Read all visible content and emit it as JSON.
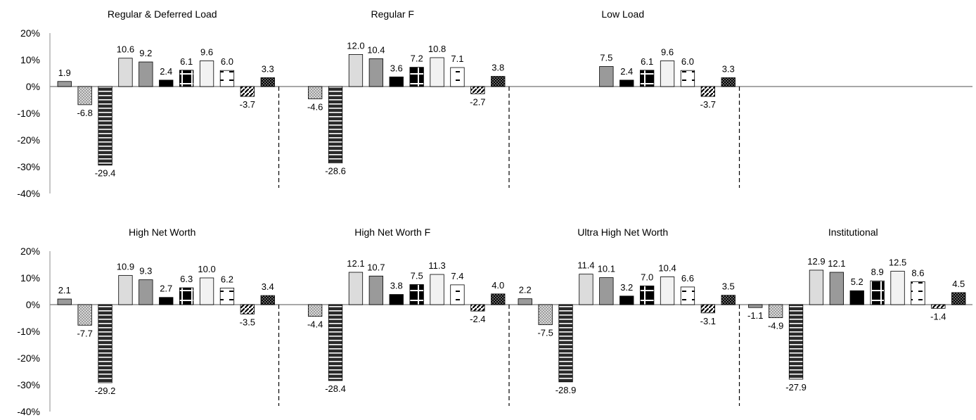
{
  "chart_data": {
    "type": "bar",
    "ylim": [
      -40,
      20
    ],
    "yticks": [
      "20%",
      "10%",
      "0%",
      "-10%",
      "-20%",
      "-30%",
      "-40%"
    ],
    "bar_styles": [
      "gray",
      "dots",
      "hstripes",
      "lightgray",
      "gray",
      "black",
      "black-cross",
      "white-light",
      "white-dash",
      "white-diag",
      "black-dots"
    ],
    "rows": [
      {
        "panels": [
          {
            "title": "Regular & Deferred Load",
            "values": [
              1.9,
              -6.8,
              -29.4,
              10.6,
              9.2,
              2.4,
              6.1,
              9.6,
              6.0,
              -3.7,
              3.3
            ],
            "labels": [
              "1.9",
              "-6.8",
              "-29.4",
              "10.6",
              "9.2",
              "2.4",
              "6.1",
              "9.6",
              "6.0",
              "-3.7",
              "3.3"
            ]
          },
          {
            "title": "Regular F",
            "values": [
              null,
              -4.6,
              -28.6,
              12.0,
              10.4,
              3.6,
              7.2,
              10.8,
              7.1,
              -2.7,
              3.8
            ],
            "labels": [
              "",
              "-4.6",
              "-28.6",
              "12.0",
              "10.4",
              "3.6",
              "7.2",
              "10.8",
              "7.1",
              "-2.7",
              "3.8"
            ]
          },
          {
            "title": "Low Load",
            "values": [
              null,
              null,
              null,
              null,
              7.5,
              2.4,
              6.1,
              9.6,
              6.0,
              -3.7,
              3.3
            ],
            "labels": [
              "",
              "",
              "",
              "",
              "7.5",
              "2.4",
              "6.1",
              "9.6",
              "6.0",
              "-3.7",
              "3.3"
            ]
          }
        ]
      },
      {
        "panels": [
          {
            "title": "High Net Worth",
            "values": [
              2.1,
              -7.7,
              -29.2,
              10.9,
              9.3,
              2.7,
              6.3,
              10.0,
              6.2,
              -3.5,
              3.4
            ],
            "labels": [
              "2.1",
              "-7.7",
              "-29.2",
              "10.9",
              "9.3",
              "2.7",
              "6.3",
              "10.0",
              "6.2",
              "-3.5",
              "3.4"
            ]
          },
          {
            "title": "High Net Worth F",
            "values": [
              null,
              -4.4,
              -28.4,
              12.1,
              10.7,
              3.8,
              7.5,
              11.3,
              7.4,
              -2.4,
              4.0
            ],
            "labels": [
              "",
              "-4.4",
              "-28.4",
              "12.1",
              "10.7",
              "3.8",
              "7.5",
              "11.3",
              "7.4",
              "-2.4",
              "4.0"
            ]
          },
          {
            "title": "Ultra High Net Worth",
            "values": [
              2.2,
              -7.5,
              -28.9,
              11.4,
              10.1,
              3.2,
              7.0,
              10.4,
              6.6,
              -3.1,
              3.5
            ],
            "labels": [
              "2.2",
              "-7.5",
              "-28.9",
              "11.4",
              "10.1",
              "3.2",
              "7.0",
              "10.4",
              "6.6",
              "-3.1",
              "3.5"
            ]
          },
          {
            "title": "Institutional",
            "values": [
              -1.1,
              -4.9,
              -27.9,
              12.9,
              12.1,
              5.2,
              8.9,
              12.5,
              8.6,
              -1.4,
              4.5
            ],
            "labels": [
              "-1.1",
              "-4.9",
              "-27.9",
              "12.9",
              "12.1",
              "5.2",
              "8.9",
              "12.5",
              "8.6",
              "-1.4",
              "4.5"
            ]
          }
        ]
      }
    ]
  }
}
